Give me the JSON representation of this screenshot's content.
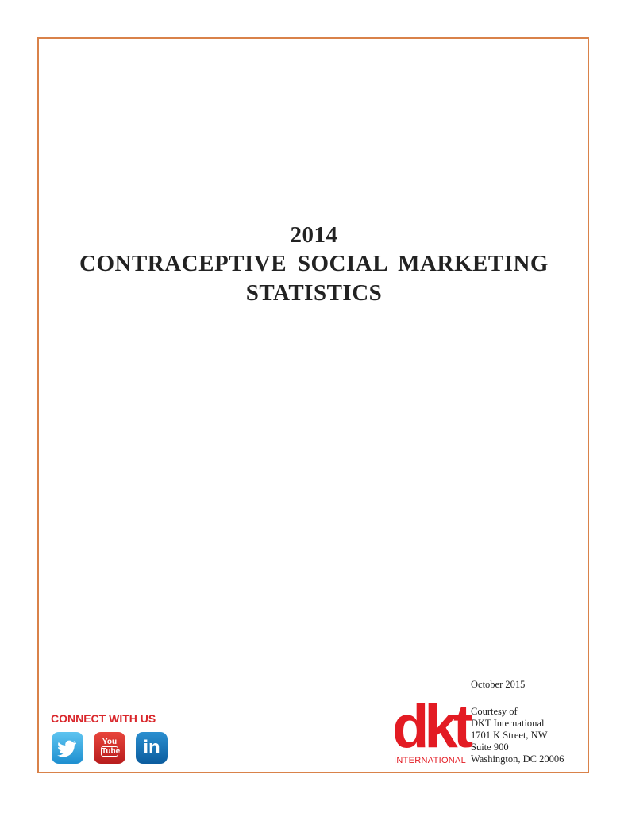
{
  "title": {
    "year": "2014",
    "line1": "CONTRACEPTIVE SOCIAL MARKETING",
    "line2": "STATISTICS"
  },
  "date": "October 2015",
  "courtesy": [
    "Courtesy of",
    "DKT International",
    "1701 K Street, NW",
    "Suite 900",
    "Washington, DC 20006"
  ],
  "logo": {
    "mark": "dkt",
    "sub": "INTERNATIONAL"
  },
  "social": {
    "heading": "CONNECT WITH US",
    "youtube": [
      "You",
      "Tube"
    ],
    "linkedin": "in"
  }
}
